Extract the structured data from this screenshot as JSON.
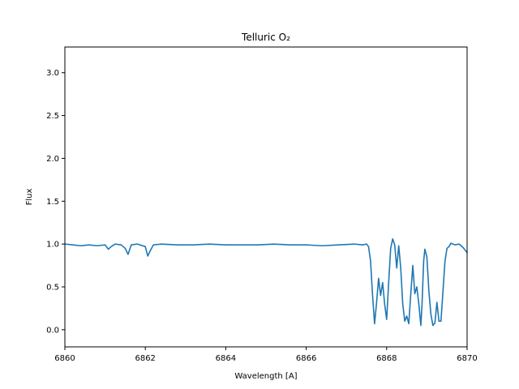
{
  "chart_data": {
    "type": "line",
    "title": "Telluric O₂",
    "xlabel": "Wavelength [A]",
    "ylabel": "Flux",
    "xlim": [
      6860,
      6870
    ],
    "ylim": [
      -0.2,
      3.3
    ],
    "x_ticks": [
      6860,
      6862,
      6864,
      6866,
      6868,
      6870
    ],
    "x_tick_labels": [
      "6860",
      "6862",
      "6864",
      "6866",
      "6868",
      "6870"
    ],
    "y_ticks": [
      0.0,
      0.5,
      1.0,
      1.5,
      2.0,
      2.5,
      3.0
    ],
    "y_tick_labels": [
      "0.0",
      "0.5",
      "1.0",
      "1.5",
      "2.0",
      "2.5",
      "3.0"
    ],
    "grid": false,
    "line_color": "#1f77b4",
    "series": [
      {
        "x": [
          6860.0,
          6860.2,
          6860.4,
          6860.6,
          6860.8,
          6861.0,
          6861.08,
          6861.15,
          6861.25,
          6861.4,
          6861.5,
          6861.57,
          6861.65,
          6861.8,
          6862.0,
          6862.06,
          6862.12,
          6862.2,
          6862.4,
          6862.8,
          6863.2,
          6863.6,
          6864.0,
          6864.4,
          6864.8,
          6865.2,
          6865.6,
          6866.0,
          6866.4,
          6866.8,
          6867.2,
          6867.4,
          6867.5,
          6867.55,
          6867.6,
          6867.65,
          6867.7,
          6867.75,
          6867.8,
          6867.85,
          6867.9,
          6867.95,
          6868.0,
          6868.05,
          6868.1,
          6868.15,
          6868.2,
          6868.25,
          6868.3,
          6868.35,
          6868.4,
          6868.45,
          6868.5,
          6868.55,
          6868.6,
          6868.65,
          6868.7,
          6868.75,
          6868.8,
          6868.85,
          6868.88,
          6868.92,
          6868.95,
          6869.0,
          6869.05,
          6869.1,
          6869.15,
          6869.2,
          6869.25,
          6869.3,
          6869.35,
          6869.4,
          6869.45,
          6869.5,
          6869.55,
          6869.6,
          6869.7,
          6869.8,
          6869.9,
          6870.0
        ],
        "y": [
          1.0,
          0.99,
          0.98,
          0.99,
          0.98,
          0.99,
          0.94,
          0.97,
          1.0,
          0.99,
          0.95,
          0.88,
          0.99,
          1.0,
          0.97,
          0.86,
          0.92,
          0.99,
          1.0,
          0.99,
          0.99,
          1.0,
          0.99,
          0.99,
          0.99,
          1.0,
          0.99,
          0.99,
          0.98,
          0.99,
          1.0,
          0.99,
          1.0,
          0.97,
          0.8,
          0.4,
          0.07,
          0.32,
          0.6,
          0.4,
          0.55,
          0.3,
          0.12,
          0.55,
          0.95,
          1.06,
          0.99,
          0.72,
          0.98,
          0.72,
          0.3,
          0.1,
          0.16,
          0.07,
          0.42,
          0.75,
          0.42,
          0.5,
          0.3,
          0.05,
          0.3,
          0.8,
          0.94,
          0.85,
          0.45,
          0.18,
          0.05,
          0.08,
          0.32,
          0.1,
          0.1,
          0.45,
          0.8,
          0.95,
          0.97,
          1.01,
          0.99,
          1.0,
          0.96,
          0.9
        ]
      }
    ]
  }
}
